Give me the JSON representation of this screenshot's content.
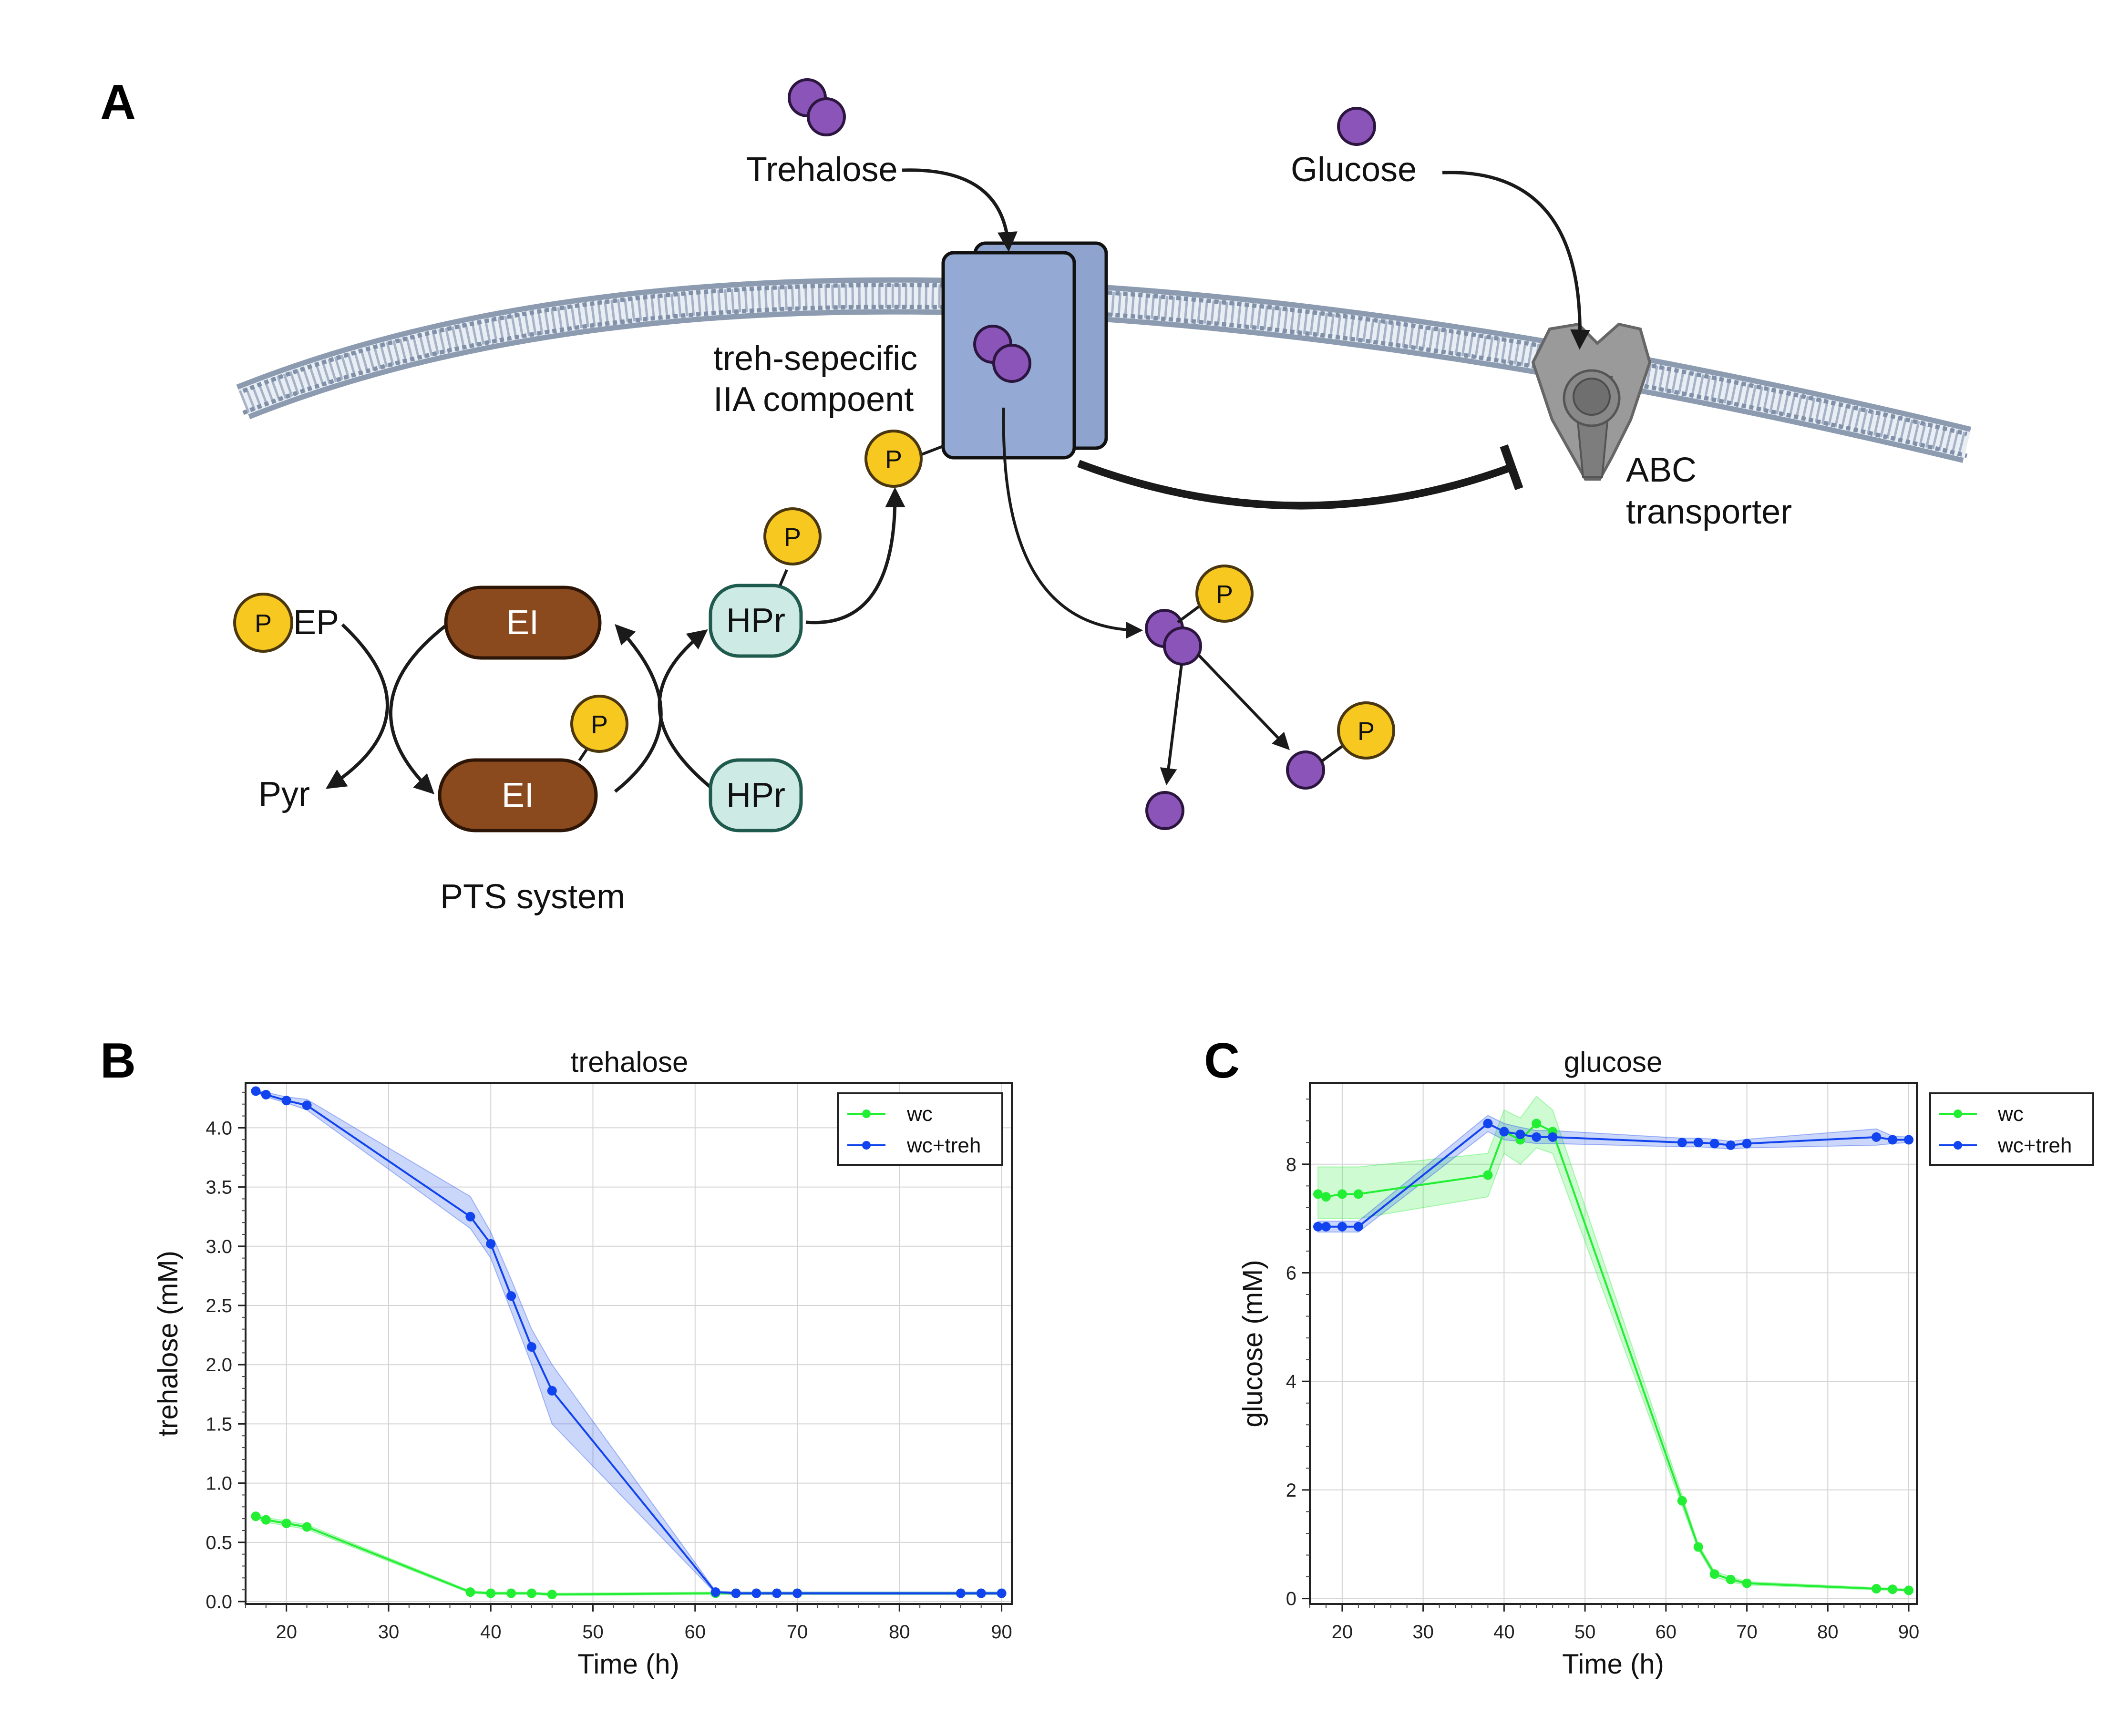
{
  "panels": {
    "a": "A",
    "b": "B",
    "c": "C"
  },
  "diagram": {
    "trehalose": "Trehalose",
    "glucose": "Glucose",
    "iia_line1": "treh-sepecific",
    "iia_line2": "IIA compoent",
    "abc_line1": "ABC",
    "abc_line2": "transporter",
    "pep_suffix": "EP",
    "pyr": "Pyr",
    "ei": "EI",
    "hpr": "HPr",
    "p": "P",
    "pts": "PTS system",
    "colors": {
      "sugar": "#8a54b8",
      "phosphate": "#f7c820",
      "enzyme_ei": "#8b4a1e",
      "hpr_fill": "#cdeae4",
      "transporter": "#8ea4cf",
      "abc": "#9a9a9a",
      "membrane": "#8c9bb0"
    }
  },
  "charts": [
    {
      "chart_data": {
        "type": "line",
        "title": "trehalose",
        "xlabel": "Time (h)",
        "ylabel": "trehalose (mM)",
        "xlim": [
          16,
          91
        ],
        "ylim": [
          -0.02,
          4.38
        ],
        "xticks": [
          20,
          30,
          40,
          50,
          60,
          70,
          80,
          90
        ],
        "yticks": [
          0.0,
          0.5,
          1.0,
          1.5,
          2.0,
          2.5,
          3.0,
          3.5,
          4.0
        ],
        "ytick_labels": [
          "0.0",
          "0.5",
          "1.0",
          "1.5",
          "2.0",
          "2.5",
          "3.0",
          "3.5",
          "4.0"
        ],
        "grid": true,
        "legend": "top-right",
        "series": [
          {
            "name": "wc",
            "color": "#22ee33",
            "x": [
              17,
              18,
              20,
              22,
              38,
              40,
              42,
              44,
              46,
              62,
              64,
              66,
              68,
              70,
              86,
              88,
              90
            ],
            "y": [
              0.72,
              0.69,
              0.66,
              0.63,
              0.08,
              0.07,
              0.07,
              0.07,
              0.06,
              0.07,
              0.07,
              0.07,
              0.07,
              0.07,
              0.07,
              0.07,
              0.07
            ],
            "lower": [
              0.7,
              0.67,
              0.64,
              0.61,
              0.07,
              0.06,
              0.06,
              0.06,
              0.05,
              0.06,
              0.06,
              0.06,
              0.06,
              0.06,
              0.06,
              0.06,
              0.06
            ],
            "upper": [
              0.74,
              0.71,
              0.68,
              0.65,
              0.09,
              0.08,
              0.08,
              0.08,
              0.07,
              0.08,
              0.08,
              0.08,
              0.08,
              0.08,
              0.08,
              0.08,
              0.08
            ]
          },
          {
            "name": "wc+treh",
            "color": "#1144ee",
            "x": [
              17,
              18,
              20,
              22,
              38,
              40,
              42,
              44,
              46,
              62,
              64,
              66,
              68,
              70,
              86,
              88,
              90
            ],
            "y": [
              4.31,
              4.28,
              4.23,
              4.19,
              3.25,
              3.02,
              2.58,
              2.15,
              1.78,
              0.08,
              0.07,
              0.07,
              0.07,
              0.07,
              0.07,
              0.07,
              0.07
            ],
            "lower": [
              4.3,
              4.26,
              4.21,
              4.15,
              3.15,
              2.9,
              2.45,
              2.0,
              1.5,
              0.07,
              0.06,
              0.06,
              0.06,
              0.06,
              0.06,
              0.06,
              0.06
            ],
            "upper": [
              4.32,
              4.3,
              4.26,
              4.24,
              3.42,
              3.12,
              2.72,
              2.3,
              2.0,
              0.09,
              0.08,
              0.08,
              0.08,
              0.08,
              0.08,
              0.08,
              0.08
            ]
          }
        ]
      }
    },
    {
      "chart_data": {
        "type": "line",
        "title": "glucose",
        "xlabel": "Time (h)",
        "ylabel": "glucose (mM)",
        "xlim": [
          16,
          91
        ],
        "ylim": [
          -0.1,
          9.5
        ],
        "xticks": [
          20,
          30,
          40,
          50,
          60,
          70,
          80,
          90
        ],
        "yticks": [
          0,
          2,
          4,
          6,
          8
        ],
        "ytick_labels": [
          "0",
          "2",
          "4",
          "6",
          "8"
        ],
        "grid": true,
        "legend": "outside-right",
        "series": [
          {
            "name": "wc",
            "color": "#22ee33",
            "x": [
              17,
              18,
              20,
              22,
              38,
              40,
              42,
              44,
              46,
              62,
              64,
              66,
              68,
              70,
              86,
              88,
              90
            ],
            "y": [
              7.45,
              7.4,
              7.45,
              7.45,
              7.8,
              8.6,
              8.45,
              8.75,
              8.6,
              1.8,
              0.95,
              0.45,
              0.35,
              0.28,
              0.18,
              0.17,
              0.15
            ],
            "lower": [
              7.0,
              7.0,
              7.0,
              7.0,
              7.4,
              8.2,
              8.0,
              8.3,
              8.2,
              1.7,
              0.9,
              0.4,
              0.3,
              0.25,
              0.16,
              0.15,
              0.13
            ],
            "upper": [
              7.95,
              7.95,
              7.95,
              7.95,
              8.2,
              9.0,
              8.85,
              9.25,
              9.0,
              1.9,
              1.0,
              0.5,
              0.4,
              0.31,
              0.2,
              0.19,
              0.17
            ]
          },
          {
            "name": "wc+treh",
            "color": "#1144ee",
            "x": [
              17,
              18,
              20,
              22,
              38,
              40,
              42,
              44,
              46,
              62,
              64,
              66,
              68,
              70,
              86,
              88,
              90
            ],
            "y": [
              6.85,
              6.85,
              6.85,
              6.85,
              8.75,
              8.6,
              8.55,
              8.5,
              8.5,
              8.4,
              8.4,
              8.38,
              8.35,
              8.38,
              8.5,
              8.45,
              8.45
            ],
            "lower": [
              6.75,
              6.75,
              6.75,
              6.75,
              8.6,
              8.45,
              8.42,
              8.38,
              8.38,
              8.32,
              8.32,
              8.3,
              8.28,
              8.3,
              8.35,
              8.38,
              8.4
            ],
            "upper": [
              6.95,
              6.95,
              6.95,
              6.95,
              8.9,
              8.75,
              8.68,
              8.62,
              8.62,
              8.48,
              8.48,
              8.46,
              8.42,
              8.46,
              8.65,
              8.52,
              8.5
            ]
          }
        ]
      }
    }
  ]
}
